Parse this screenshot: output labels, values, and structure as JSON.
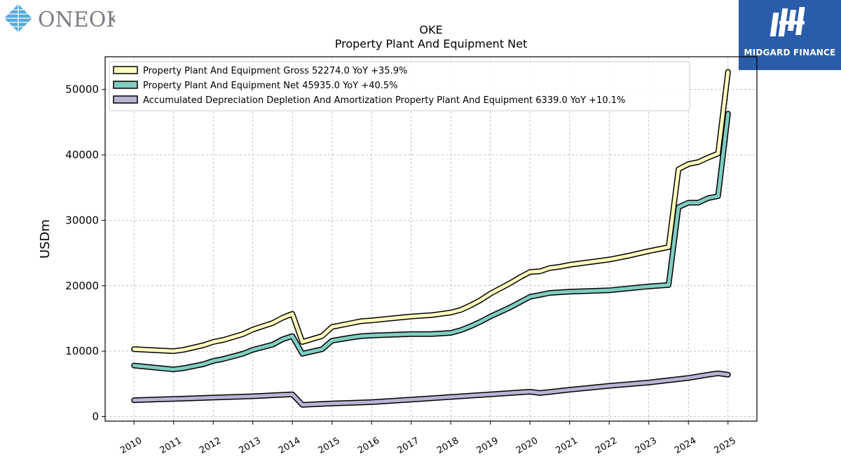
{
  "logos": {
    "left_text": "ONEOK",
    "right_text": "MIDGARD FINANCE",
    "right_bg": "#2a5caa"
  },
  "chart_data": {
    "type": "line",
    "title": "OKE",
    "subtitle": "Property Plant And Equipment Net",
    "ylabel": "USDm",
    "xlabel": "",
    "xlim": [
      2009.27,
      2025.73
    ],
    "ylim": [
      -700,
      55000
    ],
    "yticks": [
      0,
      10000,
      20000,
      30000,
      40000,
      50000
    ],
    "xticks": [
      2010,
      2011,
      2012,
      2013,
      2014,
      2015,
      2016,
      2017,
      2018,
      2019,
      2020,
      2021,
      2022,
      2023,
      2024,
      2025
    ],
    "grid": true,
    "legend_position": "top-left",
    "series": [
      {
        "name": "Property Plant And Equipment Gross",
        "legend": "Property Plant And Equipment Gross  52274.0 YoY +35.9%",
        "color": "#ffffbf",
        "points": [
          [
            2010.0,
            10300
          ],
          [
            2011.0,
            10000
          ],
          [
            2011.25,
            10200
          ],
          [
            2011.75,
            10900
          ],
          [
            2012.0,
            11400
          ],
          [
            2012.25,
            11700
          ],
          [
            2012.75,
            12600
          ],
          [
            2013.0,
            13300
          ],
          [
            2013.5,
            14300
          ],
          [
            2013.75,
            15100
          ],
          [
            2014.0,
            15700
          ],
          [
            2014.25,
            11400
          ],
          [
            2014.75,
            12300
          ],
          [
            2015.0,
            13700
          ],
          [
            2015.5,
            14300
          ],
          [
            2015.75,
            14600
          ],
          [
            2016.0,
            14700
          ],
          [
            2016.5,
            15000
          ],
          [
            2017.0,
            15300
          ],
          [
            2017.5,
            15500
          ],
          [
            2018.0,
            15900
          ],
          [
            2018.25,
            16300
          ],
          [
            2018.5,
            17000
          ],
          [
            2018.75,
            17800
          ],
          [
            2019.0,
            18800
          ],
          [
            2019.5,
            20400
          ],
          [
            2019.75,
            21300
          ],
          [
            2020.0,
            22100
          ],
          [
            2020.25,
            22200
          ],
          [
            2020.5,
            22700
          ],
          [
            2020.75,
            22900
          ],
          [
            2021.0,
            23200
          ],
          [
            2021.5,
            23600
          ],
          [
            2022.0,
            24000
          ],
          [
            2022.5,
            24600
          ],
          [
            2023.0,
            25300
          ],
          [
            2023.5,
            25900
          ],
          [
            2023.75,
            37800
          ],
          [
            2024.0,
            38600
          ],
          [
            2024.25,
            38900
          ],
          [
            2024.5,
            39600
          ],
          [
            2024.75,
            40200
          ],
          [
            2025.0,
            52700
          ]
        ]
      },
      {
        "name": "Property Plant And Equipment Net",
        "legend": "Property Plant And Equipment Net  45935.0 YoY +40.5%",
        "color": "#80cdc1",
        "points": [
          [
            2010.0,
            7800
          ],
          [
            2011.0,
            7200
          ],
          [
            2011.25,
            7400
          ],
          [
            2011.75,
            8000
          ],
          [
            2012.0,
            8500
          ],
          [
            2012.25,
            8800
          ],
          [
            2012.75,
            9600
          ],
          [
            2013.0,
            10200
          ],
          [
            2013.5,
            11000
          ],
          [
            2013.75,
            11800
          ],
          [
            2014.0,
            12300
          ],
          [
            2014.25,
            9600
          ],
          [
            2014.75,
            10300
          ],
          [
            2015.0,
            11600
          ],
          [
            2015.5,
            12100
          ],
          [
            2015.75,
            12300
          ],
          [
            2016.0,
            12400
          ],
          [
            2016.5,
            12500
          ],
          [
            2017.0,
            12600
          ],
          [
            2017.5,
            12600
          ],
          [
            2018.0,
            12800
          ],
          [
            2018.25,
            13200
          ],
          [
            2018.5,
            13800
          ],
          [
            2018.75,
            14500
          ],
          [
            2019.0,
            15300
          ],
          [
            2019.5,
            16700
          ],
          [
            2019.75,
            17500
          ],
          [
            2020.0,
            18300
          ],
          [
            2020.25,
            18600
          ],
          [
            2020.5,
            18900
          ],
          [
            2020.75,
            19000
          ],
          [
            2021.0,
            19100
          ],
          [
            2021.5,
            19200
          ],
          [
            2022.0,
            19300
          ],
          [
            2022.5,
            19600
          ],
          [
            2023.0,
            19900
          ],
          [
            2023.5,
            20100
          ],
          [
            2023.75,
            32000
          ],
          [
            2024.0,
            32700
          ],
          [
            2024.25,
            32700
          ],
          [
            2024.5,
            33400
          ],
          [
            2024.75,
            33700
          ],
          [
            2025.0,
            46300
          ]
        ]
      },
      {
        "name": "Accumulated Depreciation Depletion And Amortization Property Plant And Equipment",
        "legend": "Accumulated Depreciation Depletion And Amortization Property Plant And Equipment  6339.0 YoY +10.1%",
        "color": "#b8b4d4",
        "points": [
          [
            2010.0,
            2500
          ],
          [
            2011.0,
            2700
          ],
          [
            2012.0,
            2900
          ],
          [
            2013.0,
            3100
          ],
          [
            2014.0,
            3400
          ],
          [
            2014.25,
            1800
          ],
          [
            2015.0,
            2000
          ],
          [
            2016.0,
            2200
          ],
          [
            2017.0,
            2600
          ],
          [
            2018.0,
            3000
          ],
          [
            2019.0,
            3400
          ],
          [
            2020.0,
            3800
          ],
          [
            2020.25,
            3600
          ],
          [
            2021.0,
            4100
          ],
          [
            2022.0,
            4700
          ],
          [
            2023.0,
            5200
          ],
          [
            2024.0,
            5900
          ],
          [
            2024.5,
            6400
          ],
          [
            2024.75,
            6600
          ],
          [
            2025.0,
            6400
          ]
        ]
      }
    ]
  }
}
